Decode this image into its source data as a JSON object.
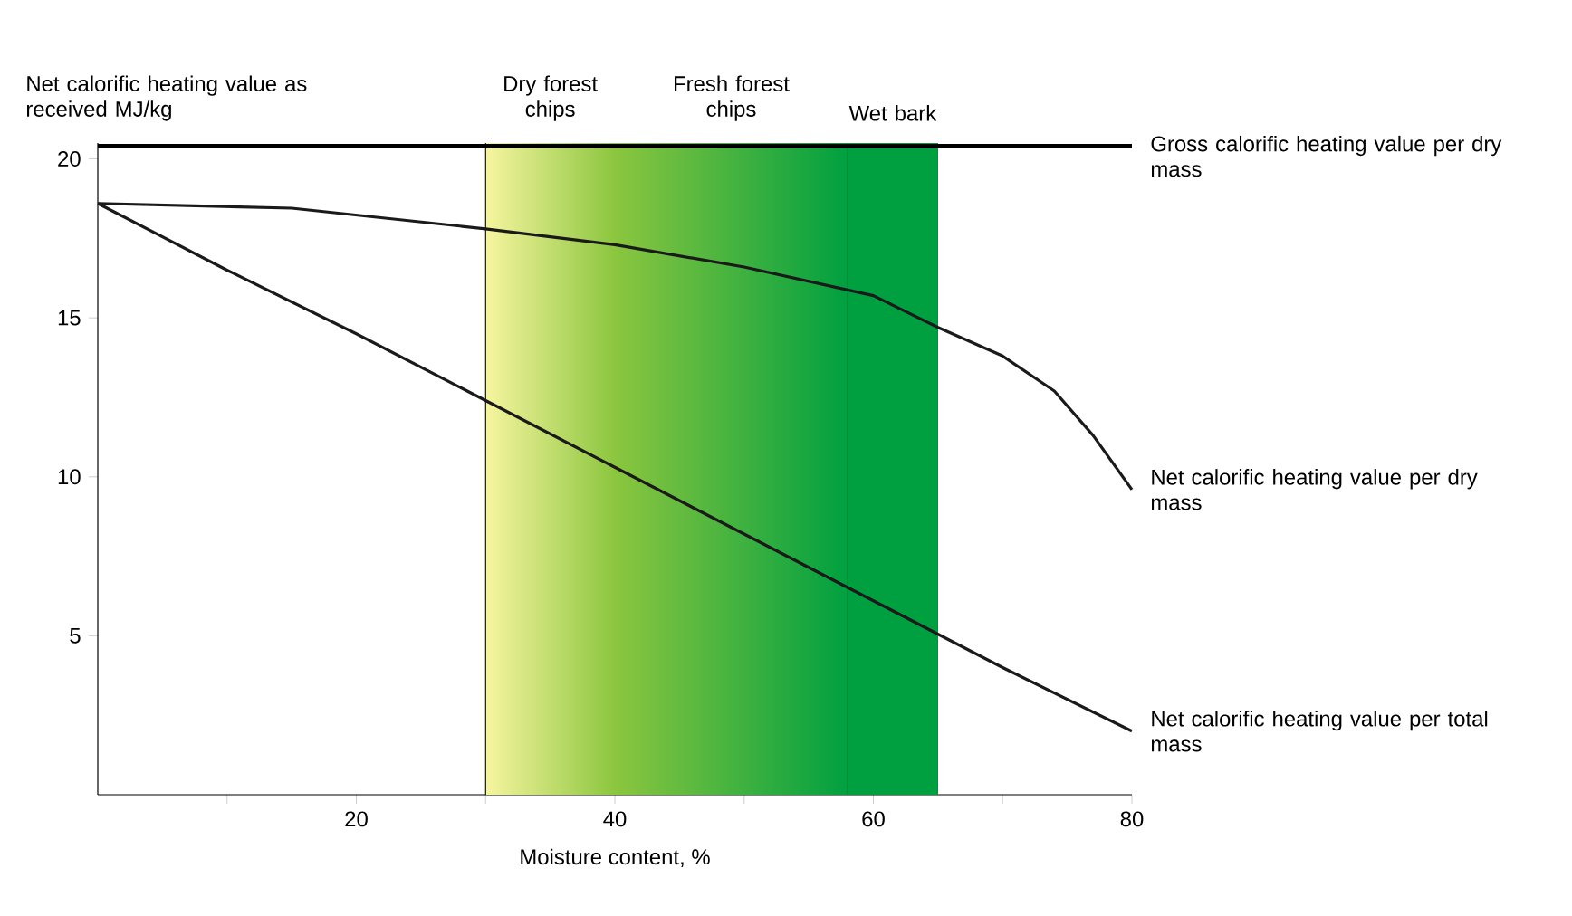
{
  "chart_data": {
    "type": "line",
    "xlabel": "Moisture content, %",
    "ylabel": "Net calorific heating value as received MJ/kg",
    "xlim": [
      0,
      80
    ],
    "ylim": [
      0,
      20.5
    ],
    "xticks": [
      {
        "value": 10,
        "label": null
      },
      20,
      {
        "value": 30,
        "label": null
      },
      40,
      {
        "value": 50,
        "label": null
      },
      60,
      {
        "value": 70,
        "label": null
      },
      80
    ],
    "yticks": [
      5,
      10,
      15,
      20
    ],
    "marker": "none",
    "line_style": "solid",
    "ref_lines": [
      {
        "axis": "y",
        "value": 20.4,
        "label": "Gross calorific heating value per dry mass",
        "color": "#000000"
      }
    ],
    "bands": [
      {
        "axis": "x",
        "from": 30,
        "to": 40,
        "label": "Dry forest chips",
        "color": "#f7f5a0"
      },
      {
        "axis": "x",
        "from": 40,
        "to": 58,
        "label": "Fresh forest chips",
        "color": "#8cc63f"
      },
      {
        "axis": "x",
        "from": 58,
        "to": 65,
        "label": "Wet bark",
        "color": "#00a040"
      }
    ],
    "series": [
      {
        "name": "Net calorific heating value per dry mass",
        "color": "#1a1a1a",
        "x": [
          0,
          15,
          30,
          40,
          50,
          60,
          65,
          70,
          74,
          77,
          80
        ],
        "values": [
          18.6,
          18.45,
          17.8,
          17.3,
          16.6,
          15.7,
          14.7,
          13.8,
          12.7,
          11.3,
          9.6
        ]
      },
      {
        "name": "Net calorific heating value per total mass",
        "color": "#1a1a1a",
        "x": [
          0,
          10,
          20,
          30,
          40,
          50,
          60,
          70,
          80
        ],
        "values": [
          18.6,
          16.5,
          14.5,
          12.4,
          10.3,
          8.2,
          6.1,
          4.0,
          2.0
        ]
      }
    ]
  }
}
